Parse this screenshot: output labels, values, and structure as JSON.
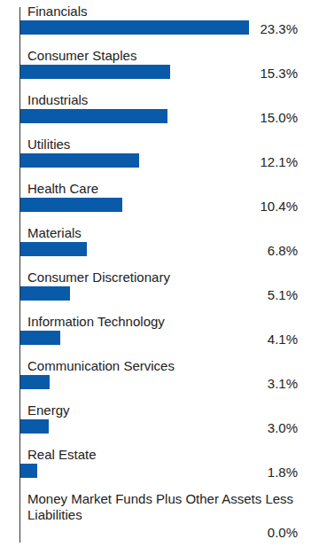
{
  "chart_data": {
    "type": "bar",
    "orientation": "horizontal",
    "categories": [
      "Financials",
      "Consumer Staples",
      "Industrials",
      "Utilities",
      "Health Care",
      "Materials",
      "Consumer Discretionary",
      "Information Technology",
      "Communication Services",
      "Energy",
      "Real Estate",
      "Money Market Funds Plus Other Assets Less Liabilities"
    ],
    "values": [
      23.3,
      15.3,
      15.0,
      12.1,
      10.4,
      6.8,
      5.1,
      4.1,
      3.1,
      3.0,
      1.8,
      0.0
    ],
    "value_labels": [
      "23.3%",
      "15.3%",
      "15.0%",
      "12.1%",
      "10.4%",
      "6.8%",
      "5.1%",
      "4.1%",
      "3.1%",
      "3.0%",
      "1.8%",
      "0.0%"
    ],
    "color": "#0a5aaa",
    "xlim": [
      0,
      25
    ],
    "data_labels": true,
    "tick_labels": false,
    "grid": false
  }
}
